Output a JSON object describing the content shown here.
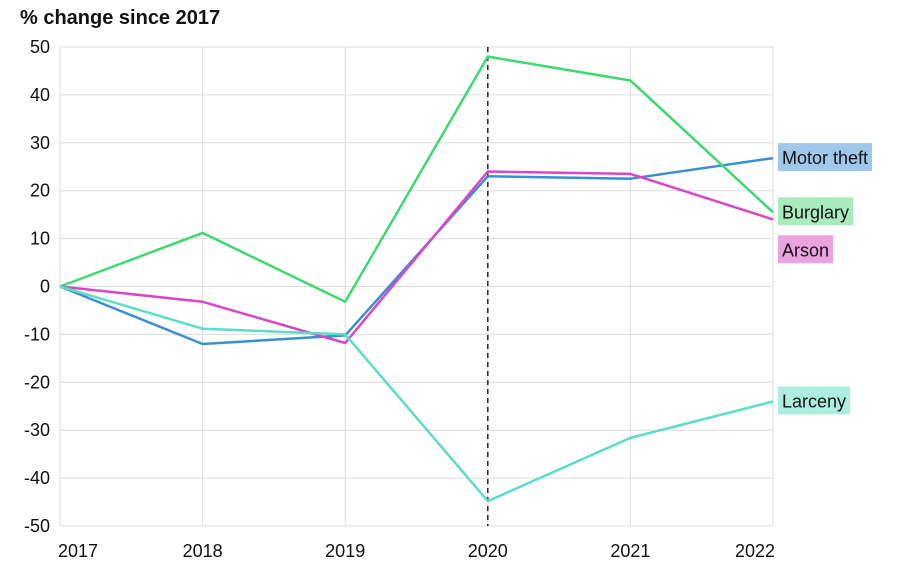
{
  "chart_data": {
    "type": "line",
    "title": "% change since 2017",
    "xlabel": "",
    "ylabel": "",
    "x": [
      "2017",
      "2018",
      "2019",
      "2020",
      "2021",
      "2022"
    ],
    "ylim": [
      -50,
      50
    ],
    "yticks": [
      50,
      40,
      30,
      20,
      10,
      0,
      -10,
      -20,
      -30,
      -40,
      -50
    ],
    "grid": true,
    "reference_line": {
      "x": "2020",
      "style": "dashed"
    },
    "legend_placement": "right-inline-labels",
    "series": [
      {
        "name": "Motor theft",
        "color": "#3a8fd0",
        "label_bg": "#9fc8ea",
        "values": [
          0,
          -12,
          -10.2,
          23,
          22.5,
          26.8
        ]
      },
      {
        "name": "Burglary",
        "color": "#3ed872",
        "label_bg": "#a8ecbe",
        "values": [
          0,
          11.2,
          -3.2,
          48,
          43,
          15.5
        ]
      },
      {
        "name": "Arson",
        "color": "#d946c6",
        "label_bg": "#eaa2e0",
        "values": [
          0,
          -3.2,
          -11.8,
          24,
          23.5,
          14
        ]
      },
      {
        "name": "Larceny",
        "color": "#5ddcc6",
        "label_bg": "#aeeee0",
        "values": [
          0,
          -8.8,
          -10,
          -44.8,
          -31.6,
          -24
        ]
      }
    ]
  }
}
